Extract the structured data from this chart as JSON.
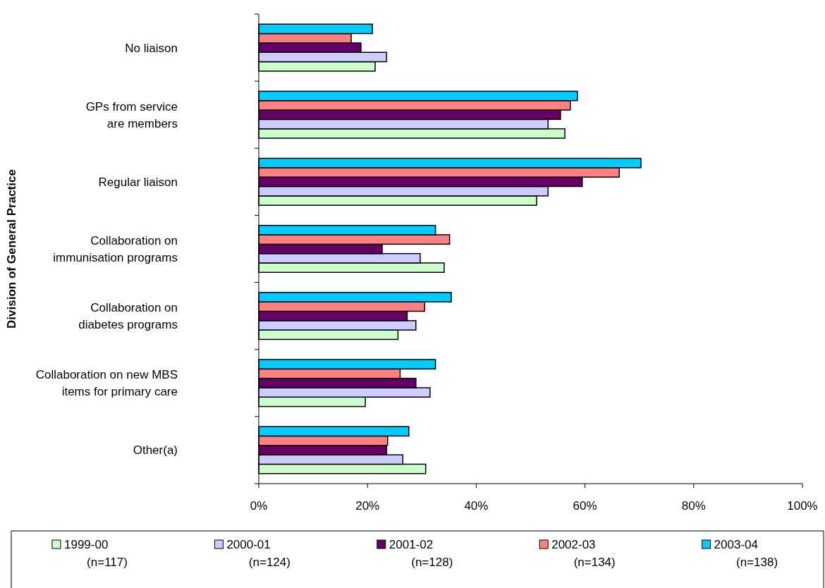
{
  "chart_data": {
    "type": "bar",
    "orientation": "horizontal",
    "ylabel": "Division of General Practice",
    "categories": [
      "No liaison",
      "GPs from service\nare members",
      "Regular liaison",
      "Collaboration on\nimmunisation programs",
      "Collaboration on\ndiabetes programs",
      "Collaboration on new MBS\nitems for primary care",
      "Other(a)"
    ],
    "series": [
      {
        "name": "1999-00\n(n=117)",
        "color": "#ccffcc",
        "values": [
          21.4,
          56.3,
          51.1,
          34.1,
          25.6,
          19.6,
          30.7
        ]
      },
      {
        "name": "2000-01\n(n=124)",
        "color": "#ccccff",
        "values": [
          23.5,
          53.2,
          53.2,
          29.7,
          28.9,
          31.5,
          26.5
        ]
      },
      {
        "name": "2001-02\n(n=128)",
        "color": "#660066",
        "values": [
          18.8,
          55.5,
          59.5,
          22.7,
          27.3,
          28.9,
          23.5
        ]
      },
      {
        "name": "2002-03\n(n=134)",
        "color": "#ff8080",
        "values": [
          17.0,
          57.3,
          66.3,
          35.1,
          30.5,
          26.0,
          23.7
        ]
      },
      {
        "name": "2003-04\n(n=138)",
        "color": "#00ccff",
        "values": [
          20.9,
          58.6,
          70.3,
          32.5,
          35.4,
          32.5,
          27.6
        ]
      }
    ],
    "xlim": [
      0,
      100
    ],
    "xticks": [
      {
        "value": 0,
        "label": "0%"
      },
      {
        "value": 20,
        "label": "20%"
      },
      {
        "value": 40,
        "label": "40%"
      },
      {
        "value": 60,
        "label": "60%"
      },
      {
        "value": 80,
        "label": "80%"
      },
      {
        "value": 100,
        "label": "100%"
      }
    ],
    "grid": false,
    "legend": "bottom"
  }
}
